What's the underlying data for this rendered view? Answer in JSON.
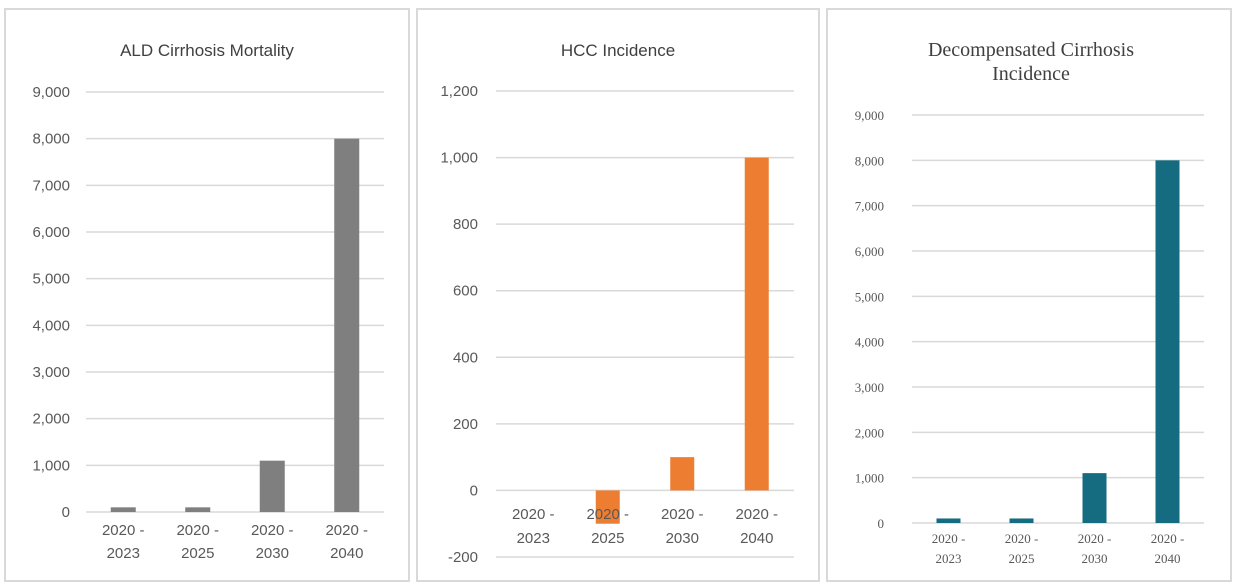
{
  "chart_data": [
    {
      "type": "bar",
      "title": "ALD Cirrhosis Mortality",
      "categories": [
        [
          "2020 -",
          "2023"
        ],
        [
          "2020 -",
          "2025"
        ],
        [
          "2020 -",
          "2030"
        ],
        [
          "2020 -",
          "2040"
        ]
      ],
      "series": [
        {
          "values": [
            100,
            100,
            1100,
            8000
          ]
        }
      ],
      "ylim": [
        0,
        9000
      ],
      "yticks": [
        "9,000",
        "8,000",
        "7,000",
        "6,000",
        "5,000",
        "4,000",
        "3,000",
        "2,000",
        "1,000",
        "0"
      ],
      "grid": true,
      "color": "#7f7f7f"
    },
    {
      "type": "bar",
      "title": "HCC Incidence",
      "categories": [
        [
          "2020 -",
          "2023"
        ],
        [
          "2020 -",
          "2025"
        ],
        [
          "2020 -",
          "2030"
        ],
        [
          "2020 -",
          "2040"
        ]
      ],
      "series": [
        {
          "values": [
            0,
            -100,
            100,
            1000
          ]
        }
      ],
      "ylim": [
        -200,
        1200
      ],
      "yticks": [
        "1,200",
        "1,000",
        "800",
        "600",
        "400",
        "200",
        "0",
        "-200"
      ],
      "grid": true,
      "color": "#ed7d31"
    },
    {
      "type": "bar",
      "title": "Decompensated Cirrhosis Incidence",
      "title_lines": [
        "Decompensated Cirrhosis",
        "Incidence"
      ],
      "categories": [
        [
          "2020 -",
          "2023"
        ],
        [
          "2020 -",
          "2025"
        ],
        [
          "2020 -",
          "2030"
        ],
        [
          "2020 -",
          "2040"
        ]
      ],
      "series": [
        {
          "values": [
            100,
            100,
            1100,
            8000
          ]
        }
      ],
      "ylim": [
        0,
        9000
      ],
      "yticks": [
        "9,000",
        "8,000",
        "7,000",
        "6,000",
        "5,000",
        "4,000",
        "3,000",
        "2,000",
        "1,000",
        "0"
      ],
      "grid": true,
      "color": "#156b80"
    }
  ]
}
